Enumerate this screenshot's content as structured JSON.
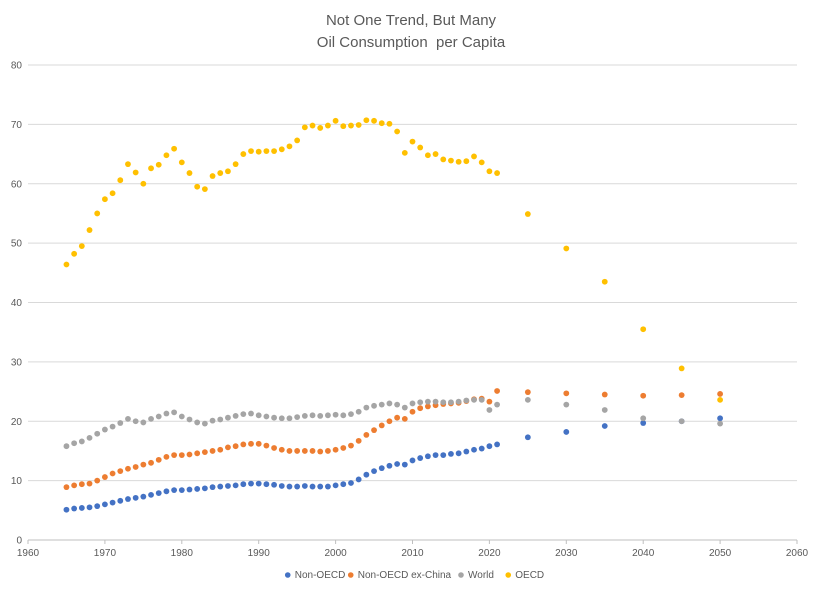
{
  "chart_data": {
    "type": "scatter",
    "title": "Not One Trend, But Many",
    "subtitle": "Oil Consumption  per Capita",
    "xlim": [
      1960,
      2060
    ],
    "ylim": [
      0,
      80
    ],
    "x_ticks": [
      "1960",
      "1970",
      "1980",
      "1990",
      "2000",
      "2010",
      "2020",
      "2030",
      "2040",
      "2050",
      "2060"
    ],
    "y_ticks": [
      "0",
      "10",
      "20",
      "30",
      "40",
      "50",
      "60",
      "70",
      "80"
    ],
    "grid": "horizontal",
    "legend_position": "bottom",
    "series": [
      {
        "name": "Non-OECD",
        "color": "#4472c4",
        "x": [
          1965,
          1966,
          1967,
          1968,
          1969,
          1970,
          1971,
          1972,
          1973,
          1974,
          1975,
          1976,
          1977,
          1978,
          1979,
          1980,
          1981,
          1982,
          1983,
          1984,
          1985,
          1986,
          1987,
          1988,
          1989,
          1990,
          1991,
          1992,
          1993,
          1994,
          1995,
          1996,
          1997,
          1998,
          1999,
          2000,
          2001,
          2002,
          2003,
          2004,
          2005,
          2006,
          2007,
          2008,
          2009,
          2010,
          2011,
          2012,
          2013,
          2014,
          2015,
          2016,
          2017,
          2018,
          2019,
          2020,
          2021,
          2025,
          2030,
          2035,
          2040,
          2045,
          2050
        ],
        "y": [
          5.1,
          5.3,
          5.4,
          5.5,
          5.7,
          6.0,
          6.3,
          6.6,
          6.9,
          7.1,
          7.3,
          7.6,
          7.9,
          8.2,
          8.4,
          8.4,
          8.5,
          8.6,
          8.7,
          8.9,
          9.0,
          9.1,
          9.2,
          9.4,
          9.5,
          9.5,
          9.4,
          9.3,
          9.1,
          9.0,
          9.0,
          9.1,
          9.0,
          9.0,
          9.0,
          9.2,
          9.4,
          9.6,
          10.2,
          11.0,
          11.6,
          12.1,
          12.5,
          12.8,
          12.7,
          13.4,
          13.8,
          14.1,
          14.3,
          14.3,
          14.5,
          14.6,
          14.9,
          15.2,
          15.4,
          15.8,
          16.1,
          17.3,
          18.2,
          19.2,
          19.7,
          20.0,
          20.5
        ]
      },
      {
        "name": "Non-OECD ex-China",
        "color": "#ed7d31",
        "x": [
          1965,
          1966,
          1967,
          1968,
          1969,
          1970,
          1971,
          1972,
          1973,
          1974,
          1975,
          1976,
          1977,
          1978,
          1979,
          1980,
          1981,
          1982,
          1983,
          1984,
          1985,
          1986,
          1987,
          1988,
          1989,
          1990,
          1991,
          1992,
          1993,
          1994,
          1995,
          1996,
          1997,
          1998,
          1999,
          2000,
          2001,
          2002,
          2003,
          2004,
          2005,
          2006,
          2007,
          2008,
          2009,
          2010,
          2011,
          2012,
          2013,
          2014,
          2015,
          2016,
          2017,
          2018,
          2019,
          2020,
          2021,
          2025,
          2030,
          2035,
          2040,
          2045,
          2050
        ],
        "y": [
          8.9,
          9.2,
          9.4,
          9.5,
          10.0,
          10.6,
          11.2,
          11.6,
          12.0,
          12.3,
          12.7,
          13.0,
          13.5,
          14.0,
          14.3,
          14.3,
          14.4,
          14.6,
          14.8,
          15.0,
          15.2,
          15.6,
          15.8,
          16.1,
          16.2,
          16.2,
          15.9,
          15.5,
          15.2,
          15.0,
          15.0,
          15.0,
          15.0,
          14.9,
          15.0,
          15.2,
          15.5,
          15.9,
          16.7,
          17.7,
          18.5,
          19.3,
          20.0,
          20.6,
          20.4,
          21.6,
          22.2,
          22.5,
          22.7,
          22.9,
          23.0,
          23.1,
          23.4,
          23.7,
          23.8,
          23.3,
          25.1,
          24.9,
          24.7,
          24.5,
          24.3,
          24.4,
          24.6
        ]
      },
      {
        "name": "World",
        "color": "#a5a5a5",
        "x": [
          1965,
          1966,
          1967,
          1968,
          1969,
          1970,
          1971,
          1972,
          1973,
          1974,
          1975,
          1976,
          1977,
          1978,
          1979,
          1980,
          1981,
          1982,
          1983,
          1984,
          1985,
          1986,
          1987,
          1988,
          1989,
          1990,
          1991,
          1992,
          1993,
          1994,
          1995,
          1996,
          1997,
          1998,
          1999,
          2000,
          2001,
          2002,
          2003,
          2004,
          2005,
          2006,
          2007,
          2008,
          2009,
          2010,
          2011,
          2012,
          2013,
          2014,
          2015,
          2016,
          2017,
          2018,
          2019,
          2020,
          2021,
          2025,
          2030,
          2035,
          2040,
          2045,
          2050
        ],
        "y": [
          15.8,
          16.3,
          16.6,
          17.2,
          17.9,
          18.6,
          19.1,
          19.7,
          20.4,
          20.0,
          19.8,
          20.4,
          20.8,
          21.3,
          21.5,
          20.8,
          20.3,
          19.8,
          19.6,
          20.1,
          20.3,
          20.6,
          20.9,
          21.2,
          21.3,
          21.0,
          20.8,
          20.6,
          20.5,
          20.5,
          20.7,
          20.9,
          21.0,
          20.9,
          21.0,
          21.1,
          21.0,
          21.2,
          21.6,
          22.3,
          22.6,
          22.8,
          23.0,
          22.8,
          22.3,
          23.0,
          23.2,
          23.3,
          23.3,
          23.2,
          23.2,
          23.3,
          23.5,
          23.6,
          23.6,
          21.9,
          22.8,
          23.6,
          22.8,
          21.9,
          20.5,
          20.0,
          19.6
        ]
      },
      {
        "name": "OECD",
        "color": "#ffc000",
        "x": [
          1965,
          1966,
          1967,
          1968,
          1969,
          1970,
          1971,
          1972,
          1973,
          1974,
          1975,
          1976,
          1977,
          1978,
          1979,
          1980,
          1981,
          1982,
          1983,
          1984,
          1985,
          1986,
          1987,
          1988,
          1989,
          1990,
          1991,
          1992,
          1993,
          1994,
          1995,
          1996,
          1997,
          1998,
          1999,
          2000,
          2001,
          2002,
          2003,
          2004,
          2005,
          2006,
          2007,
          2008,
          2009,
          2010,
          2011,
          2012,
          2013,
          2014,
          2015,
          2016,
          2017,
          2018,
          2019,
          2020,
          2021,
          2025,
          2030,
          2035,
          2040,
          2045,
          2050
        ],
        "y": [
          46.4,
          48.2,
          49.5,
          52.2,
          55.0,
          57.4,
          58.4,
          60.6,
          63.3,
          61.9,
          60.0,
          62.6,
          63.2,
          64.8,
          65.9,
          63.6,
          61.8,
          59.5,
          59.1,
          61.3,
          61.8,
          62.1,
          63.3,
          65.0,
          65.5,
          65.4,
          65.5,
          65.5,
          65.8,
          66.3,
          67.3,
          69.5,
          69.8,
          69.4,
          69.8,
          70.6,
          69.7,
          69.8,
          69.9,
          70.7,
          70.6,
          70.2,
          70.1,
          68.8,
          65.2,
          67.1,
          66.1,
          64.8,
          65.0,
          64.1,
          63.9,
          63.7,
          63.8,
          64.6,
          63.6,
          62.1,
          61.8,
          54.9,
          49.1,
          43.5,
          35.5,
          28.9,
          23.6
        ]
      }
    ]
  }
}
